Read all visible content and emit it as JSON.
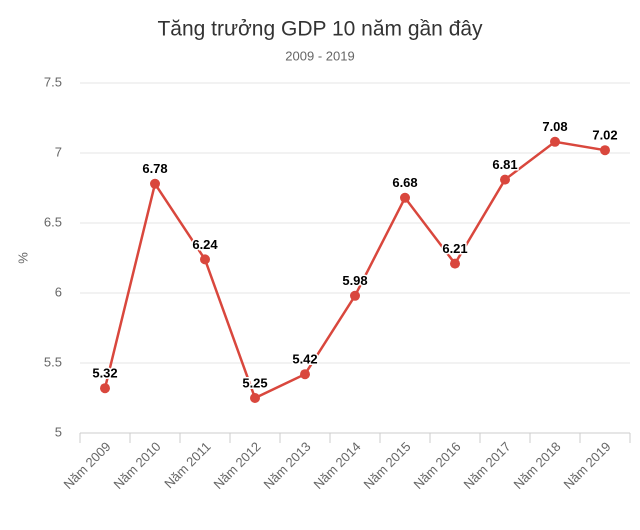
{
  "chart_data": {
    "type": "line",
    "title": "Tăng trưởng GDP 10 năm gần đây",
    "subtitle": "2009 - 2019",
    "y_label": "%",
    "categories": [
      "Năm 2009",
      "Năm 2010",
      "Năm 2011",
      "Năm 2012",
      "Năm 2013",
      "Năm 2014",
      "Năm 2015",
      "Năm 2016",
      "Năm 2017",
      "Năm 2018",
      "Năm 2019"
    ],
    "values": [
      5.32,
      6.78,
      6.24,
      5.25,
      5.42,
      5.98,
      6.68,
      6.21,
      6.81,
      7.08,
      7.02
    ],
    "color": "#d9473d",
    "ylim": [
      5,
      7.5
    ],
    "yticks": [
      5,
      5.5,
      6,
      6.5,
      7,
      7.5
    ],
    "grid": true
  }
}
